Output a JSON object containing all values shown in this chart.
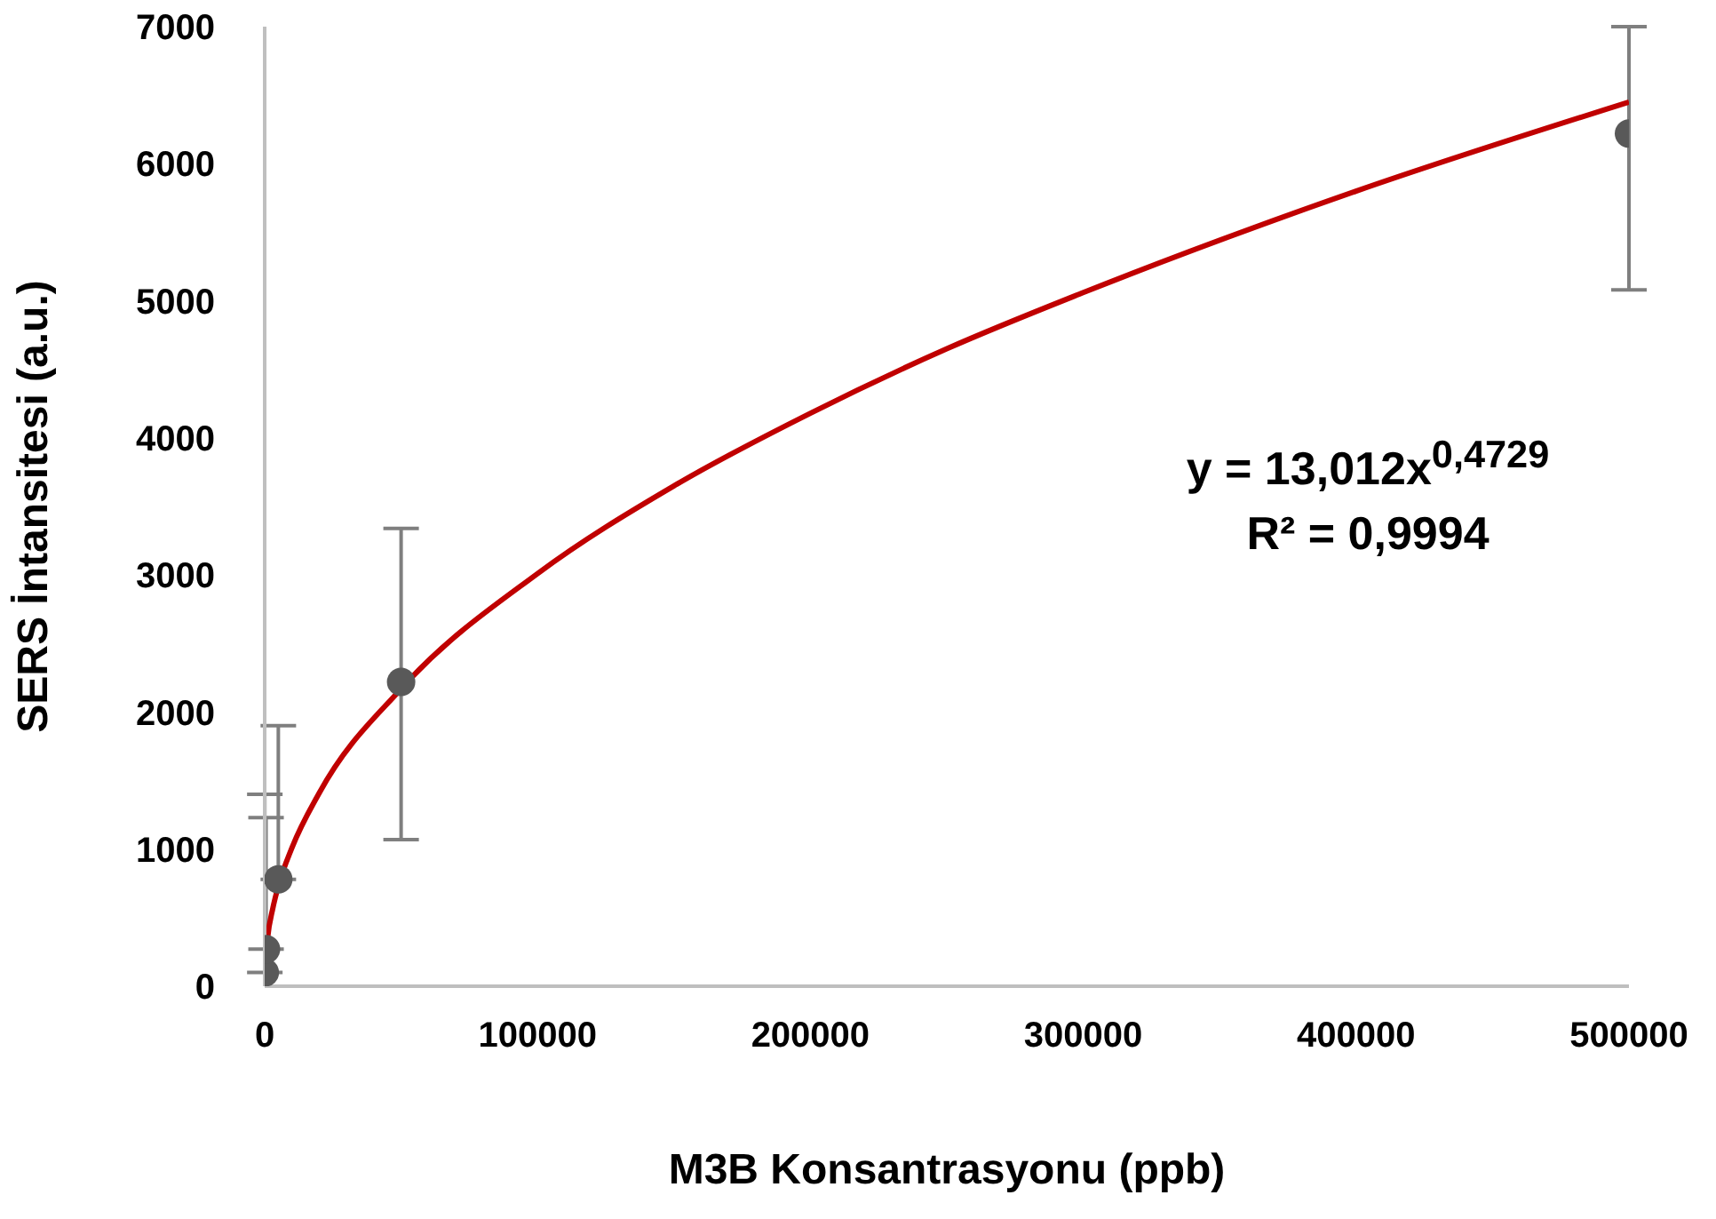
{
  "chart_data": {
    "type": "scatter",
    "xlabel": "M3B  Konsantrasyonu (ppb)",
    "ylabel": "SERS İntansitesi (a.u.)",
    "xlim": [
      0,
      500000
    ],
    "xticks": [
      0,
      100000,
      200000,
      300000,
      400000,
      500000
    ],
    "ylim": [
      0,
      7000
    ],
    "yticks": [
      0,
      1000,
      2000,
      3000,
      4000,
      5000,
      6000,
      7000
    ],
    "grid": false,
    "legend": false,
    "marker": "circle",
    "annotations": [
      "y = 13,012x$^{0,4729}$",
      "R² = 0,9994"
    ],
    "series": [
      {
        "color": "#595959",
        "x": [
          50,
          500,
          5000,
          50000,
          500000
        ],
        "values": [
          100,
          270,
          780,
          2220,
          6220
        ],
        "errors": [
          [
            100,
            1400
          ],
          [
            270,
            1230
          ],
          [
            780,
            1900
          ],
          [
            1070,
            3340
          ],
          [
            5080,
            7000
          ]
        ]
      },
      {
        "type": "line",
        "color": "#c00000",
        "marker": "none",
        "line_style": "solid",
        "x": [
          100,
          1000,
          3000,
          5000,
          10000,
          20000,
          50000,
          100000,
          150000,
          200000,
          250000,
          300000,
          400000,
          500000
        ],
        "values": [
          120,
          340,
          570,
          730,
          1010,
          1410,
          2170,
          3010,
          3650,
          4180,
          4650,
          5060,
          5800,
          6450
        ]
      }
    ]
  }
}
